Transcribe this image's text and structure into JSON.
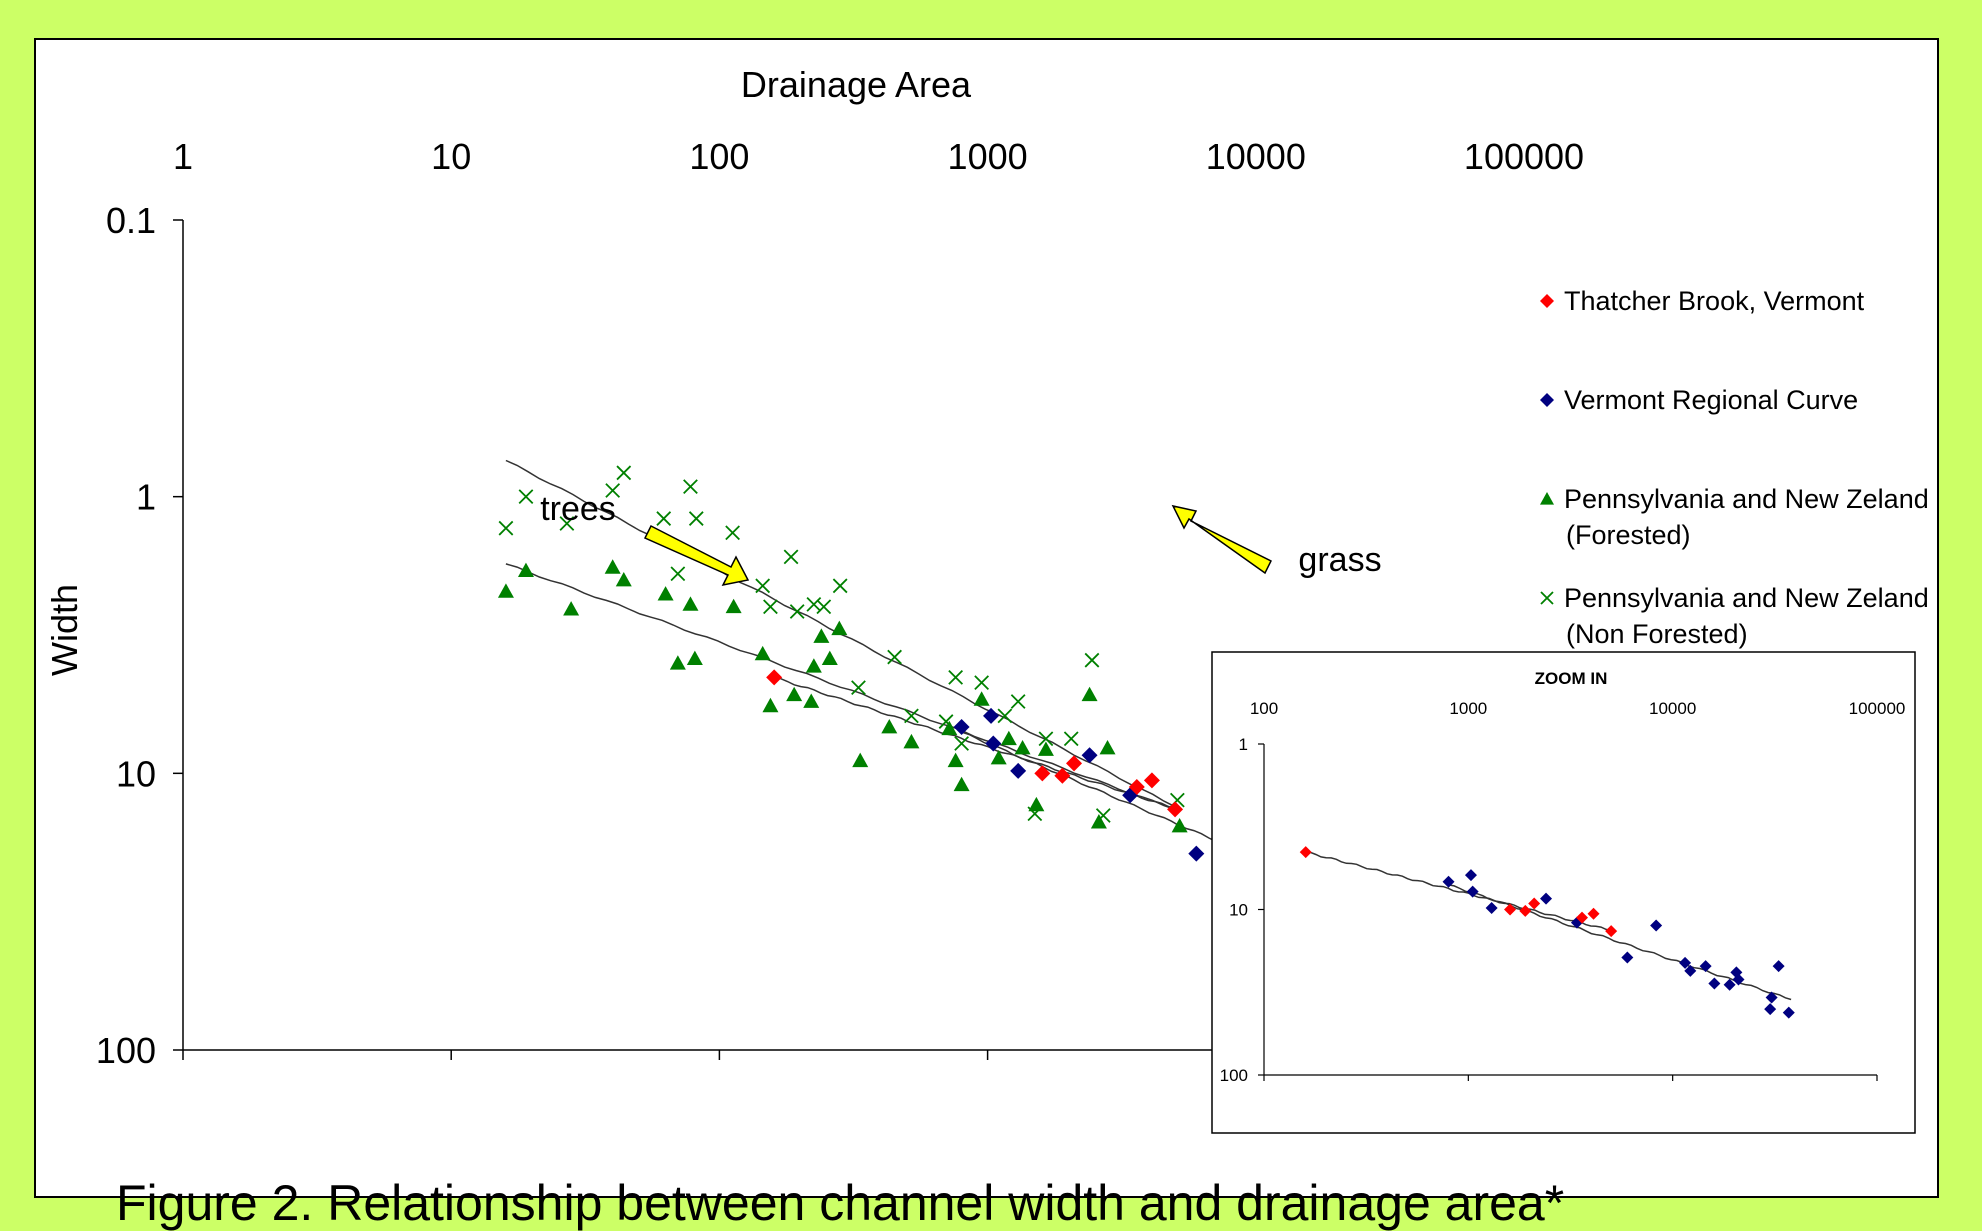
{
  "chart_data": [
    {
      "type": "scatter",
      "title": "",
      "xlabel": "Drainage Area",
      "ylabel": "Width",
      "x_scale": "log",
      "y_scale": "log",
      "xlim": [
        1,
        100000
      ],
      "ylim": [
        0.1,
        100
      ],
      "x_ticks": [
        "1",
        "10",
        "100",
        "1000",
        "10000",
        "100000"
      ],
      "y_ticks": [
        "100",
        "10",
        "1",
        "0.1"
      ],
      "x_axis_position": "top",
      "grid": false,
      "legend": "right",
      "annotations": [
        {
          "text": "trees",
          "x": 125,
          "y": 5.4
        },
        {
          "text": "grass",
          "x": 4200,
          "y": 11
        }
      ],
      "series": [
        {
          "name": "Thatcher Brook, Vermont",
          "marker": "diamond",
          "color": "#ff0000",
          "x": [
            160,
            1600,
            1900,
            2100,
            3600,
            4100,
            5000
          ],
          "y": [
            4.5,
            10,
            10.2,
            9.2,
            11.2,
            10.6,
            13.5
          ]
        },
        {
          "name": "Vermont Regional Curve",
          "marker": "diamond",
          "color": "#000080",
          "x": [
            800,
            1030,
            1050,
            1300,
            2400,
            3400,
            6000,
            8300,
            11500,
            12200,
            14500,
            16000,
            19000,
            20500,
            21000,
            30000,
            30500,
            33000,
            37000
          ],
          "y": [
            6.8,
            6.2,
            7.8,
            9.8,
            8.6,
            12,
            19.5,
            12.5,
            21,
            23.5,
            22,
            28,
            28.5,
            24,
            26.5,
            40,
            34,
            22,
            42
          ]
        },
        {
          "name": "Pennsylvania and New Zeland (Forested)",
          "marker": "triangle",
          "color": "#008000",
          "x": [
            16,
            19,
            28,
            40,
            44,
            63,
            70,
            78,
            81,
            113,
            145,
            155,
            190,
            220,
            225,
            240,
            258,
            280,
            335,
            430,
            520,
            720,
            760,
            800,
            950,
            1100,
            1200,
            1350,
            1520,
            1650,
            2400,
            2600,
            2800,
            5200
          ],
          "y": [
            2.2,
            1.85,
            2.55,
            1.8,
            2,
            2.25,
            4,
            2.45,
            3.85,
            2.5,
            3.7,
            5.7,
            5.2,
            5.5,
            4.1,
            3.2,
            3.85,
            3,
            9,
            6.8,
            7.7,
            6.9,
            9,
            11,
            5.4,
            8.8,
            7.5,
            8.1,
            13,
            8.2,
            5.2,
            15,
            8.1,
            15.5
          ]
        },
        {
          "name": "Pennsylvania and New Zeland (Non Forested)",
          "marker": "x",
          "color": "#008000",
          "x": [
            16,
            19,
            27,
            40,
            44,
            62,
            70,
            78,
            82,
            112,
            145,
            155,
            185,
            195,
            225,
            245,
            282,
            330,
            450,
            520,
            700,
            760,
            800,
            950,
            1160,
            1300,
            1500,
            1650,
            2050,
            2450,
            2700,
            5100
          ],
          "y": [
            1.3,
            1,
            1.25,
            0.95,
            0.82,
            1.2,
            1.9,
            0.92,
            1.2,
            1.35,
            2.1,
            2.5,
            1.65,
            2.6,
            2.45,
            2.5,
            2.1,
            4.9,
            3.8,
            6.2,
            6.5,
            4.5,
            7.8,
            4.7,
            6.2,
            5.5,
            14,
            7.5,
            7.5,
            3.9,
            14.2,
            12.5
          ]
        }
      ],
      "trendlines": [
        {
          "series": "Forested",
          "x": [
            16,
            5000
          ],
          "y": [
            1.75,
            13.5
          ]
        },
        {
          "series": "Non Forested",
          "x": [
            16,
            5000
          ],
          "y": [
            0.74,
            13.2
          ]
        },
        {
          "series": "Vermont Regional Curve",
          "x": [
            800,
            38000
          ],
          "y": [
            7.1,
            35
          ]
        },
        {
          "series": "Thatcher Brook, Vermont",
          "x": [
            160,
            5000
          ],
          "y": [
            4.5,
            13.4
          ]
        }
      ]
    },
    {
      "type": "scatter",
      "title": "ZOOM IN",
      "x_scale": "log",
      "y_scale": "log",
      "xlim": [
        100,
        100000
      ],
      "ylim": [
        1,
        100
      ],
      "x_ticks": [
        "100",
        "1000",
        "10000",
        "100000"
      ],
      "y_ticks": [
        "100",
        "10",
        "1"
      ],
      "x_axis_position": "top",
      "series": [
        {
          "name": "Thatcher Brook, Vermont",
          "marker": "diamond",
          "color": "#ff0000",
          "x": [
            160,
            1600,
            1900,
            2100,
            3600,
            4100,
            5000
          ],
          "y": [
            4.5,
            10,
            10.2,
            9.2,
            11.2,
            10.6,
            13.5
          ]
        },
        {
          "name": "Vermont Regional Curve",
          "marker": "diamond",
          "color": "#000080",
          "x": [
            800,
            1030,
            1050,
            1300,
            2400,
            3400,
            6000,
            8300,
            11500,
            12200,
            14500,
            16000,
            19000,
            20500,
            21000,
            30000,
            30500,
            33000,
            37000
          ],
          "y": [
            6.8,
            6.2,
            7.8,
            9.8,
            8.6,
            12,
            19.5,
            12.5,
            21,
            23.5,
            22,
            28,
            28.5,
            24,
            26.5,
            40,
            34,
            22,
            42
          ]
        }
      ],
      "trendlines": [
        {
          "series": "Thatcher Brook, Vermont",
          "x": [
            160,
            5000
          ],
          "y": [
            4.5,
            13.4
          ]
        },
        {
          "series": "Vermont Regional Curve",
          "x": [
            800,
            38000
          ],
          "y": [
            7.1,
            35
          ]
        }
      ]
    }
  ],
  "legend_items": [
    {
      "key": "thatcher",
      "marker": "diamond",
      "color": "#ff0000",
      "lines": [
        "Thatcher Brook, Vermont"
      ]
    },
    {
      "key": "vermont",
      "marker": "diamond",
      "color": "#000080",
      "lines": [
        "Vermont Regional Curve"
      ]
    },
    {
      "key": "forested",
      "marker": "triangle",
      "color": "#008000",
      "lines": [
        "Pennsylvania and New Zeland",
        "(Forested)"
      ]
    },
    {
      "key": "nonforested",
      "marker": "x",
      "color": "#008000",
      "lines": [
        "Pennsylvania and New Zeland",
        "(Non Forested)"
      ]
    }
  ],
  "caption": "Figure 2.  Relationship between channel width and drainage area*",
  "colors": {
    "background": "#ccff66",
    "panel": "#ffffff",
    "arrow_fill": "#ffff00",
    "trendline": "#333333"
  }
}
